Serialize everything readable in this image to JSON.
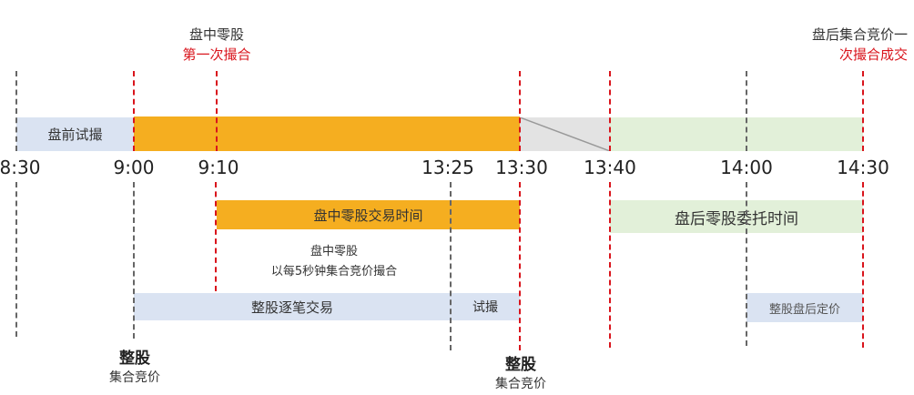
{
  "colors": {
    "orange": "#f5ae20",
    "blue": "#dae3f2",
    "green": "#e2f0d9",
    "gray": "#e3e3e3",
    "red": "#d9141c",
    "line": "#666666"
  },
  "top_labels": {
    "intraday_title": "盘中零股",
    "intraday_sub": "第一次撮合",
    "after_title": "盘后集合竞价一",
    "after_sub": "次撮合成交"
  },
  "times": [
    "8:30",
    "9:00",
    "9:10",
    "13:25",
    "13:30",
    "13:40",
    "14:00",
    "14:30"
  ],
  "bars": {
    "pre_market": "盘前试撮",
    "intraday_odd": "盘中零股交易时间",
    "after_odd": "盘后零股委托时间",
    "board_lot": "整股逐笔交易",
    "trial": "试撮",
    "after_fixed": "整股盘后定价"
  },
  "notes": {
    "odd_line1": "盘中零股",
    "odd_line2": "以每5秒钟集合竞价撮合"
  },
  "bottom_labels": [
    {
      "title": "整股",
      "sub": "集合竞价"
    },
    {
      "title": "整股",
      "sub": "集合竞价"
    }
  ]
}
